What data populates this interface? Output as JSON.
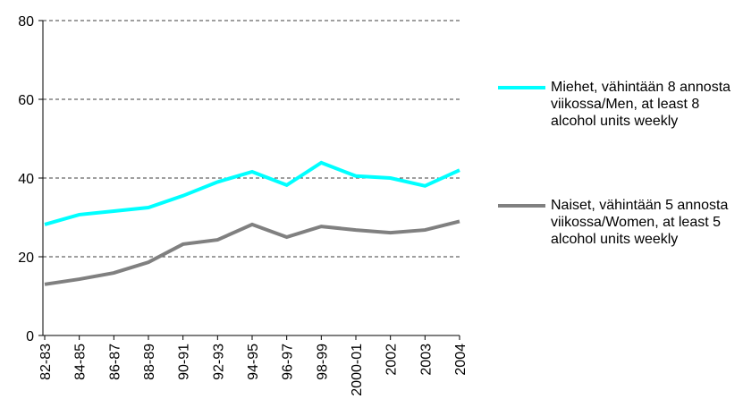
{
  "chart_data": {
    "type": "line",
    "categories": [
      "82-83",
      "84-85",
      "86-87",
      "88-89",
      "90-91",
      "92-93",
      "94-95",
      "96-97",
      "98-99",
      "2000-01",
      "2002",
      "2003",
      "2004"
    ],
    "series": [
      {
        "name": "Miehet, vähintään 8 annosta viikossa/Men, at least 8 alcohol units weekly",
        "color": "#00ffff",
        "values": [
          28.2,
          30.7,
          31.6,
          32.5,
          35.5,
          39,
          41.6,
          38.2,
          43.9,
          40.5,
          40,
          38,
          42
        ]
      },
      {
        "name": "Naiset, vähintään 5 annosta viikossa/Women, at least 5 alcohol units weekly",
        "color": "#808080",
        "values": [
          13,
          14.3,
          15.9,
          18.6,
          23.2,
          24.3,
          28.2,
          25,
          27.7,
          26.8,
          26.1,
          26.8,
          29
        ]
      }
    ],
    "ylim": [
      0,
      80
    ],
    "yticks": [
      0,
      20,
      40,
      60,
      80
    ],
    "grid": true,
    "legend": "right"
  }
}
